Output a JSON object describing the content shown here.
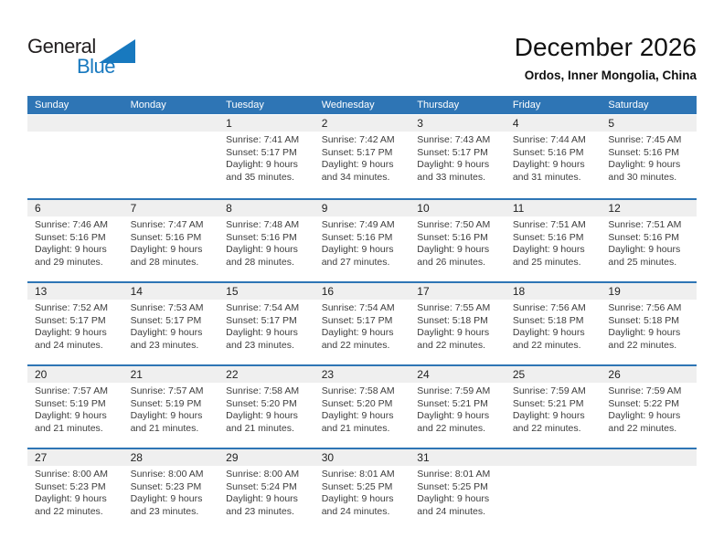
{
  "logo": {
    "general": "General",
    "blue": "Blue"
  },
  "header": {
    "title": "December 2026",
    "subtitle": "Ordos, Inner Mongolia, China"
  },
  "colors": {
    "header_bg": "#2e75b5",
    "row_separator": "#2e75b5",
    "date_band": "#efefef",
    "accent_blue": "#1879bf"
  },
  "calendar": {
    "weekdays": [
      "Sunday",
      "Monday",
      "Tuesday",
      "Wednesday",
      "Thursday",
      "Friday",
      "Saturday"
    ],
    "weeks": [
      [
        {
          "day": "",
          "lines": []
        },
        {
          "day": "",
          "lines": []
        },
        {
          "day": "1",
          "lines": [
            "Sunrise: 7:41 AM",
            "Sunset: 5:17 PM",
            "Daylight: 9 hours and 35 minutes."
          ]
        },
        {
          "day": "2",
          "lines": [
            "Sunrise: 7:42 AM",
            "Sunset: 5:17 PM",
            "Daylight: 9 hours and 34 minutes."
          ]
        },
        {
          "day": "3",
          "lines": [
            "Sunrise: 7:43 AM",
            "Sunset: 5:17 PM",
            "Daylight: 9 hours and 33 minutes."
          ]
        },
        {
          "day": "4",
          "lines": [
            "Sunrise: 7:44 AM",
            "Sunset: 5:16 PM",
            "Daylight: 9 hours and 31 minutes."
          ]
        },
        {
          "day": "5",
          "lines": [
            "Sunrise: 7:45 AM",
            "Sunset: 5:16 PM",
            "Daylight: 9 hours and 30 minutes."
          ]
        }
      ],
      [
        {
          "day": "6",
          "lines": [
            "Sunrise: 7:46 AM",
            "Sunset: 5:16 PM",
            "Daylight: 9 hours and 29 minutes."
          ]
        },
        {
          "day": "7",
          "lines": [
            "Sunrise: 7:47 AM",
            "Sunset: 5:16 PM",
            "Daylight: 9 hours and 28 minutes."
          ]
        },
        {
          "day": "8",
          "lines": [
            "Sunrise: 7:48 AM",
            "Sunset: 5:16 PM",
            "Daylight: 9 hours and 28 minutes."
          ]
        },
        {
          "day": "9",
          "lines": [
            "Sunrise: 7:49 AM",
            "Sunset: 5:16 PM",
            "Daylight: 9 hours and 27 minutes."
          ]
        },
        {
          "day": "10",
          "lines": [
            "Sunrise: 7:50 AM",
            "Sunset: 5:16 PM",
            "Daylight: 9 hours and 26 minutes."
          ]
        },
        {
          "day": "11",
          "lines": [
            "Sunrise: 7:51 AM",
            "Sunset: 5:16 PM",
            "Daylight: 9 hours and 25 minutes."
          ]
        },
        {
          "day": "12",
          "lines": [
            "Sunrise: 7:51 AM",
            "Sunset: 5:16 PM",
            "Daylight: 9 hours and 25 minutes."
          ]
        }
      ],
      [
        {
          "day": "13",
          "lines": [
            "Sunrise: 7:52 AM",
            "Sunset: 5:17 PM",
            "Daylight: 9 hours and 24 minutes."
          ]
        },
        {
          "day": "14",
          "lines": [
            "Sunrise: 7:53 AM",
            "Sunset: 5:17 PM",
            "Daylight: 9 hours and 23 minutes."
          ]
        },
        {
          "day": "15",
          "lines": [
            "Sunrise: 7:54 AM",
            "Sunset: 5:17 PM",
            "Daylight: 9 hours and 23 minutes."
          ]
        },
        {
          "day": "16",
          "lines": [
            "Sunrise: 7:54 AM",
            "Sunset: 5:17 PM",
            "Daylight: 9 hours and 22 minutes."
          ]
        },
        {
          "day": "17",
          "lines": [
            "Sunrise: 7:55 AM",
            "Sunset: 5:18 PM",
            "Daylight: 9 hours and 22 minutes."
          ]
        },
        {
          "day": "18",
          "lines": [
            "Sunrise: 7:56 AM",
            "Sunset: 5:18 PM",
            "Daylight: 9 hours and 22 minutes."
          ]
        },
        {
          "day": "19",
          "lines": [
            "Sunrise: 7:56 AM",
            "Sunset: 5:18 PM",
            "Daylight: 9 hours and 22 minutes."
          ]
        }
      ],
      [
        {
          "day": "20",
          "lines": [
            "Sunrise: 7:57 AM",
            "Sunset: 5:19 PM",
            "Daylight: 9 hours and 21 minutes."
          ]
        },
        {
          "day": "21",
          "lines": [
            "Sunrise: 7:57 AM",
            "Sunset: 5:19 PM",
            "Daylight: 9 hours and 21 minutes."
          ]
        },
        {
          "day": "22",
          "lines": [
            "Sunrise: 7:58 AM",
            "Sunset: 5:20 PM",
            "Daylight: 9 hours and 21 minutes."
          ]
        },
        {
          "day": "23",
          "lines": [
            "Sunrise: 7:58 AM",
            "Sunset: 5:20 PM",
            "Daylight: 9 hours and 21 minutes."
          ]
        },
        {
          "day": "24",
          "lines": [
            "Sunrise: 7:59 AM",
            "Sunset: 5:21 PM",
            "Daylight: 9 hours and 22 minutes."
          ]
        },
        {
          "day": "25",
          "lines": [
            "Sunrise: 7:59 AM",
            "Sunset: 5:21 PM",
            "Daylight: 9 hours and 22 minutes."
          ]
        },
        {
          "day": "26",
          "lines": [
            "Sunrise: 7:59 AM",
            "Sunset: 5:22 PM",
            "Daylight: 9 hours and 22 minutes."
          ]
        }
      ],
      [
        {
          "day": "27",
          "lines": [
            "Sunrise: 8:00 AM",
            "Sunset: 5:23 PM",
            "Daylight: 9 hours and 22 minutes."
          ]
        },
        {
          "day": "28",
          "lines": [
            "Sunrise: 8:00 AM",
            "Sunset: 5:23 PM",
            "Daylight: 9 hours and 23 minutes."
          ]
        },
        {
          "day": "29",
          "lines": [
            "Sunrise: 8:00 AM",
            "Sunset: 5:24 PM",
            "Daylight: 9 hours and 23 minutes."
          ]
        },
        {
          "day": "30",
          "lines": [
            "Sunrise: 8:01 AM",
            "Sunset: 5:25 PM",
            "Daylight: 9 hours and 24 minutes."
          ]
        },
        {
          "day": "31",
          "lines": [
            "Sunrise: 8:01 AM",
            "Sunset: 5:25 PM",
            "Daylight: 9 hours and 24 minutes."
          ]
        },
        {
          "day": "",
          "lines": []
        },
        {
          "day": "",
          "lines": []
        }
      ]
    ]
  }
}
